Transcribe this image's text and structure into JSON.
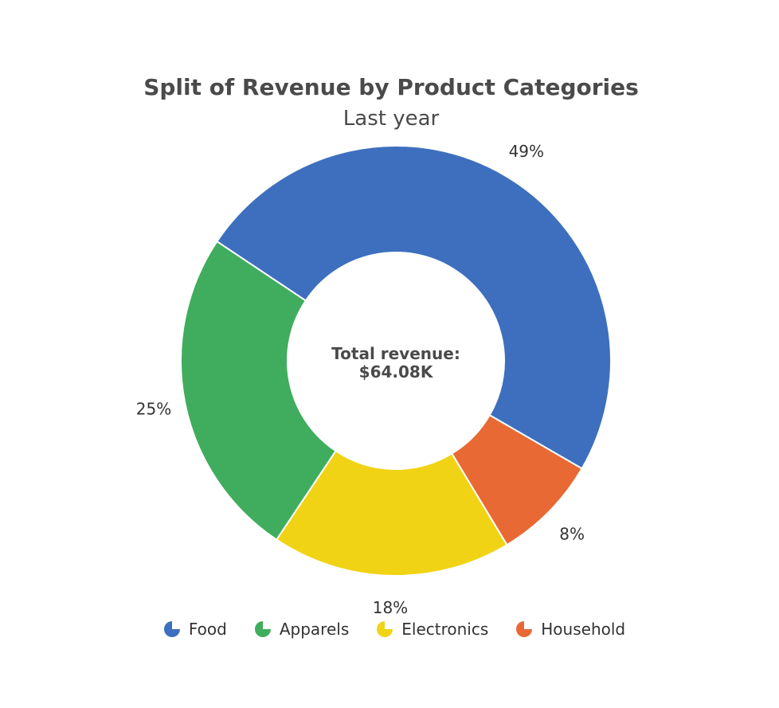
{
  "chart_data": {
    "type": "pie",
    "title": "Split of Revenue by Product Categories",
    "subtitle": "Last year",
    "center_label": [
      "Total revenue:",
      "$64.08K"
    ],
    "slices": [
      {
        "label": "Food",
        "value": 49,
        "display": "49%",
        "color": "#3d6fbe"
      },
      {
        "label": "Household",
        "value": 8,
        "display": "8%",
        "color": "#e86933"
      },
      {
        "label": "Electronics",
        "value": 18,
        "display": "18%",
        "color": "#f1d315"
      },
      {
        "label": "Apparels",
        "value": 25,
        "display": "25%",
        "color": "#3fad5d"
      }
    ],
    "legend": [
      "Food",
      "Apparels",
      "Electronics",
      "Household"
    ],
    "legend_position": "bottom"
  }
}
